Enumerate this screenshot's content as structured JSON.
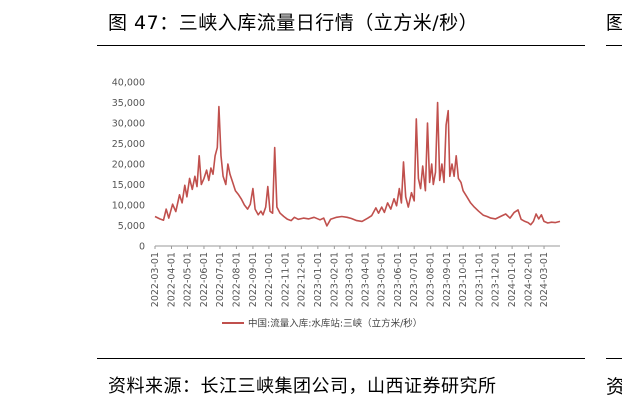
{
  "figure": {
    "title": "图 47：三峡入库流量日行情（立方米/秒）",
    "source": "资料来源：长江三峡集团公司，山西证券研究所",
    "adjacent_title_fragment": "图",
    "adjacent_source_fragment": "资"
  },
  "chart_data": {
    "type": "line",
    "title": "",
    "xlabel": "",
    "ylabel": "",
    "ylim": [
      0,
      40000
    ],
    "yticks": [
      0,
      5000,
      10000,
      15000,
      20000,
      25000,
      30000,
      35000,
      40000
    ],
    "ytick_labels": [
      "0",
      "5,000",
      "10,000",
      "15,000",
      "20,000",
      "25,000",
      "30,000",
      "35,000",
      "40,000"
    ],
    "x_range": [
      "2022-03-01",
      "2024-03-31"
    ],
    "xtick_labels": [
      "2022-03-01",
      "2022-04-01",
      "2022-05-01",
      "2022-06-01",
      "2022-07-01",
      "2022-08-01",
      "2022-09-01",
      "2022-10-01",
      "2022-11-01",
      "2022-12-01",
      "2023-01-01",
      "2023-02-01",
      "2023-03-01",
      "2023-04-01",
      "2023-05-01",
      "2023-06-01",
      "2023-07-01",
      "2023-08-01",
      "2023-09-01",
      "2023-10-01",
      "2023-11-01",
      "2023-12-01",
      "2024-01-01",
      "2024-02-01",
      "2024-03-01"
    ],
    "grid": false,
    "legend": "bottom",
    "color": "#c0504d",
    "series": [
      {
        "name": "中国:流量入库:水库站:三峡（立方米/秒）",
        "points": [
          [
            "2022-03-01",
            7200
          ],
          [
            "2022-03-10",
            6600
          ],
          [
            "2022-03-17",
            6300
          ],
          [
            "2022-03-22",
            9000
          ],
          [
            "2022-03-27",
            6800
          ],
          [
            "2022-04-03",
            10200
          ],
          [
            "2022-04-09",
            8400
          ],
          [
            "2022-04-16",
            12500
          ],
          [
            "2022-04-21",
            10500
          ],
          [
            "2022-04-26",
            14800
          ],
          [
            "2022-04-30",
            12000
          ],
          [
            "2022-05-05",
            16500
          ],
          [
            "2022-05-10",
            13800
          ],
          [
            "2022-05-15",
            17000
          ],
          [
            "2022-05-19",
            14500
          ],
          [
            "2022-05-23",
            22000
          ],
          [
            "2022-05-27",
            15000
          ],
          [
            "2022-06-01",
            16500
          ],
          [
            "2022-06-06",
            18500
          ],
          [
            "2022-06-10",
            16000
          ],
          [
            "2022-06-14",
            19000
          ],
          [
            "2022-06-18",
            17500
          ],
          [
            "2022-06-22",
            22000
          ],
          [
            "2022-06-26",
            24000
          ],
          [
            "2022-06-29",
            34000
          ],
          [
            "2022-07-03",
            22000
          ],
          [
            "2022-07-07",
            17000
          ],
          [
            "2022-07-12",
            15000
          ],
          [
            "2022-07-16",
            20000
          ],
          [
            "2022-07-20",
            17500
          ],
          [
            "2022-07-25",
            15500
          ],
          [
            "2022-07-30",
            13500
          ],
          [
            "2022-08-05",
            12500
          ],
          [
            "2022-08-10",
            11500
          ],
          [
            "2022-08-16",
            10000
          ],
          [
            "2022-08-22",
            9000
          ],
          [
            "2022-08-27",
            10200
          ],
          [
            "2022-09-01",
            14000
          ],
          [
            "2022-09-05",
            9000
          ],
          [
            "2022-09-11",
            7600
          ],
          [
            "2022-09-16",
            8500
          ],
          [
            "2022-09-20",
            7600
          ],
          [
            "2022-09-25",
            9500
          ],
          [
            "2022-09-29",
            14500
          ],
          [
            "2022-10-03",
            8500
          ],
          [
            "2022-10-08",
            8000
          ],
          [
            "2022-10-12",
            24000
          ],
          [
            "2022-10-16",
            9500
          ],
          [
            "2022-10-22",
            8000
          ],
          [
            "2022-10-29",
            7200
          ],
          [
            "2022-11-05",
            6500
          ],
          [
            "2022-11-12",
            6200
          ],
          [
            "2022-11-18",
            7000
          ],
          [
            "2022-11-25",
            6500
          ],
          [
            "2022-12-05",
            6800
          ],
          [
            "2022-12-15",
            6600
          ],
          [
            "2022-12-25",
            7000
          ],
          [
            "2023-01-05",
            6400
          ],
          [
            "2023-01-12",
            6800
          ],
          [
            "2023-01-18",
            4900
          ],
          [
            "2023-01-25",
            6500
          ],
          [
            "2023-02-05",
            7000
          ],
          [
            "2023-02-15",
            7200
          ],
          [
            "2023-02-25",
            7000
          ],
          [
            "2023-03-05",
            6700
          ],
          [
            "2023-03-15",
            6200
          ],
          [
            "2023-03-25",
            6000
          ],
          [
            "2023-04-05",
            6800
          ],
          [
            "2023-04-12",
            7400
          ],
          [
            "2023-04-20",
            9300
          ],
          [
            "2023-04-25",
            8000
          ],
          [
            "2023-05-01",
            9500
          ],
          [
            "2023-05-06",
            8200
          ],
          [
            "2023-05-12",
            10500
          ],
          [
            "2023-05-18",
            9000
          ],
          [
            "2023-05-24",
            11500
          ],
          [
            "2023-05-29",
            9800
          ],
          [
            "2023-06-03",
            14000
          ],
          [
            "2023-06-07",
            10500
          ],
          [
            "2023-06-11",
            20500
          ],
          [
            "2023-06-15",
            12000
          ],
          [
            "2023-06-20",
            9500
          ],
          [
            "2023-06-26",
            13000
          ],
          [
            "2023-07-01",
            11000
          ],
          [
            "2023-07-05",
            31000
          ],
          [
            "2023-07-09",
            16500
          ],
          [
            "2023-07-13",
            14000
          ],
          [
            "2023-07-17",
            19500
          ],
          [
            "2023-07-22",
            13500
          ],
          [
            "2023-07-26",
            30000
          ],
          [
            "2023-07-30",
            15500
          ],
          [
            "2023-08-03",
            20000
          ],
          [
            "2023-08-06",
            15000
          ],
          [
            "2023-08-10",
            18000
          ],
          [
            "2023-08-14",
            35000
          ],
          [
            "2023-08-18",
            16000
          ],
          [
            "2023-08-22",
            20000
          ],
          [
            "2023-08-26",
            15500
          ],
          [
            "2023-08-30",
            29500
          ],
          [
            "2023-09-03",
            33000
          ],
          [
            "2023-09-06",
            17000
          ],
          [
            "2023-09-10",
            20000
          ],
          [
            "2023-09-14",
            17000
          ],
          [
            "2023-09-18",
            22000
          ],
          [
            "2023-09-22",
            16500
          ],
          [
            "2023-09-27",
            15500
          ],
          [
            "2023-10-01",
            13500
          ],
          [
            "2023-10-08",
            12000
          ],
          [
            "2023-10-15",
            10500
          ],
          [
            "2023-10-22",
            9500
          ],
          [
            "2023-10-30",
            8500
          ],
          [
            "2023-11-08",
            7500
          ],
          [
            "2023-11-15",
            7200
          ],
          [
            "2023-11-22",
            6800
          ],
          [
            "2023-12-01",
            6600
          ],
          [
            "2023-12-10",
            7200
          ],
          [
            "2023-12-20",
            7800
          ],
          [
            "2023-12-28",
            6800
          ],
          [
            "2024-01-05",
            8200
          ],
          [
            "2024-01-12",
            8800
          ],
          [
            "2024-01-18",
            6500
          ],
          [
            "2024-01-25",
            6000
          ],
          [
            "2024-01-31",
            5700
          ],
          [
            "2024-02-05",
            5200
          ],
          [
            "2024-02-10",
            6000
          ],
          [
            "2024-02-15",
            7800
          ],
          [
            "2024-02-20",
            6600
          ],
          [
            "2024-02-25",
            7600
          ],
          [
            "2024-03-01",
            6000
          ],
          [
            "2024-03-08",
            5600
          ],
          [
            "2024-03-15",
            5800
          ],
          [
            "2024-03-22",
            5700
          ],
          [
            "2024-03-31",
            6000
          ]
        ]
      }
    ]
  }
}
